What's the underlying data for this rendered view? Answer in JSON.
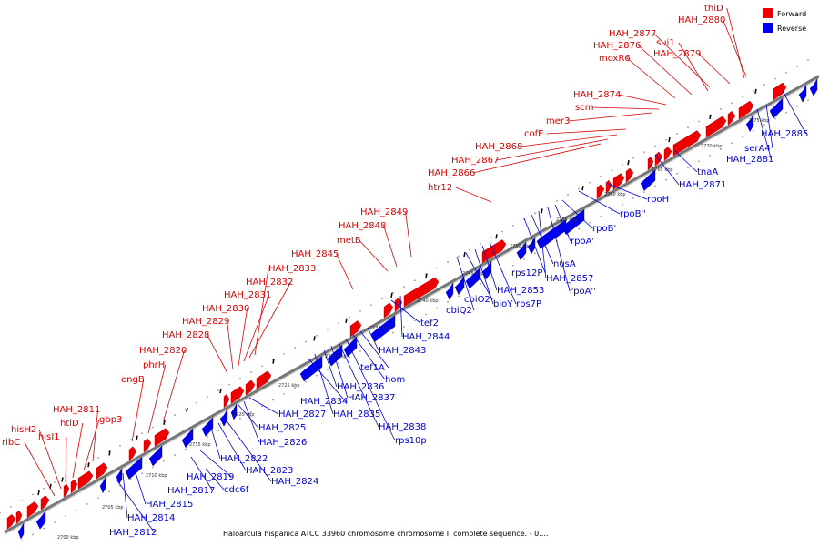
{
  "caption": "Haloarcula hispanica ATCC 33960 chromosome chromosome I, complete sequence. - 0....",
  "legend": {
    "forward": "Forward",
    "reverse": "Reverse"
  },
  "colors": {
    "forward": "#ee0000",
    "reverse": "#0000ee",
    "axis": "#777777"
  },
  "kbp_ticks": [
    "2700 kbp",
    "2705 kbp",
    "2710 kbp",
    "2715 kbp",
    "2720 kbp",
    "2725 kbp",
    "2730 kbp",
    "2735 kbp",
    "2740 kbp",
    "2745 kbp",
    "2750 kbp",
    "2755 kbp",
    "2760 kbp",
    "2765 kbp",
    "2770 kbp",
    "2775 kbp"
  ],
  "forward_labels": [
    "ribC",
    "hisH2",
    "hisI1",
    "htlD",
    "gbp3",
    "HAH_2811",
    "engB",
    "phrH",
    "HAH_2820",
    "HAH_2828",
    "HAH_2829",
    "HAH_2830",
    "HAH_2831",
    "HAH_2832",
    "HAH_2833",
    "HAH_2845",
    "metB",
    "HAH_2848",
    "HAH_2849",
    "htr12",
    "HAH_2866",
    "HAH_2867",
    "HAH_2868",
    "cofE",
    "mer3",
    "scm",
    "HAH_2874",
    "moxR6",
    "HAH_2876",
    "HAH_2877",
    "sui1",
    "HAH_2879",
    "HAH_2880",
    "thiD"
  ],
  "reverse_labels": [
    "HAH_2812",
    "HAH_2814",
    "HAH_2815",
    "cdc6f",
    "HAH_2817",
    "HAH_2819",
    "HAH_2822",
    "HAH_2823",
    "HAH_2824",
    "HAH_2825",
    "HAH_2826",
    "HAH_2827",
    "HAH_2834",
    "HAH_2835",
    "HAH_2836",
    "HAH_2837",
    "HAH_2838",
    "rps10p",
    "hom",
    "tef1A",
    "HAH_2843",
    "HAH_2844",
    "tef2",
    "cbiQ2",
    "cbiO2",
    "bioY",
    "HAH_2853",
    "rps7P",
    "rps12P",
    "nusA",
    "HAH_2857",
    "rpoA''",
    "rpoA'",
    "rpoB'",
    "rpoB''",
    "rpoH",
    "HAH_2871",
    "tnaA",
    "HAH_2881",
    "serA4",
    "HAH_2885"
  ]
}
